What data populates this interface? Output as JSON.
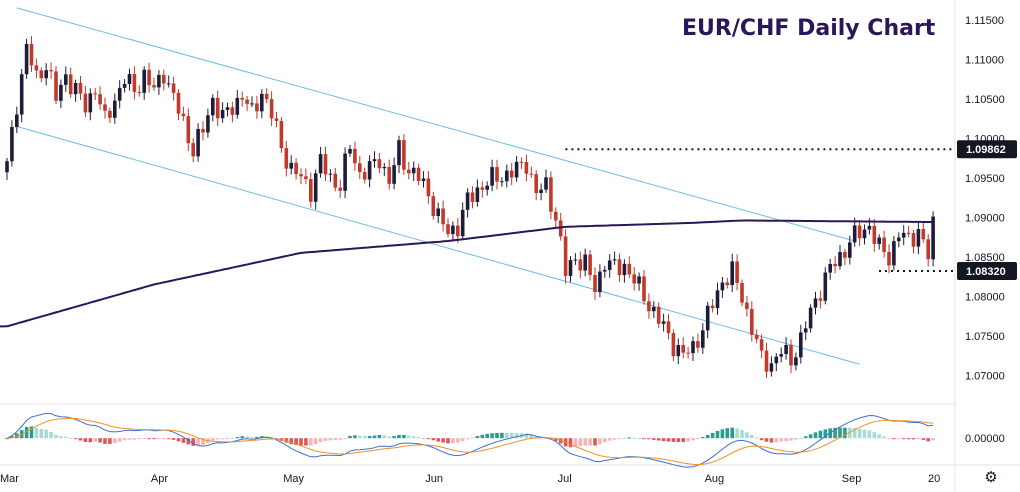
{
  "title": "EUR/CHF Daily Chart",
  "colors": {
    "up": "#1e1c3a",
    "down": "#c0392b",
    "ma": "#2a1659",
    "channel": "#6cbde8",
    "macd_line": "#3f6fd1",
    "signal_line": "#f0912b",
    "hist_pos": "#2a9d8f",
    "hist_pos_light": "#a7dcd5",
    "hist_neg": "#e05555",
    "hist_neg_light": "#f5b5b5",
    "tag_bg": "#131722"
  },
  "price_ticks": [
    "1.11500",
    "1.11000",
    "1.10500",
    "1.10000",
    "1.09500",
    "1.09000",
    "1.08500",
    "1.08000",
    "1.07500",
    "1.07000"
  ],
  "macd_tick": "0.00000",
  "month_labels": [
    "Mar",
    "Apr",
    "May",
    "Jun",
    "Jul",
    "Aug",
    "Sep",
    "20"
  ],
  "level_tags": [
    {
      "label": "1.09862",
      "value": 1.09862
    },
    {
      "label": "1.08320",
      "value": 1.0832
    }
  ],
  "settings_icon": "gear-icon",
  "chart_data": {
    "type": "candlestick",
    "title": "EUR/CHF Daily Chart",
    "x_axis_labels": [
      "Mar",
      "Apr",
      "May",
      "Jun",
      "Jul",
      "Aug",
      "Sep",
      "20"
    ],
    "y_axis": {
      "range": [
        1.0665,
        1.1175
      ],
      "ticks": [
        1.115,
        1.11,
        1.105,
        1.1,
        1.095,
        1.09,
        1.085,
        1.08,
        1.075,
        1.07
      ]
    },
    "close_path": [
      [
        0,
        1.0965
      ],
      [
        2,
        1.1045
      ],
      [
        4,
        1.1115
      ],
      [
        6,
        1.1075
      ],
      [
        8,
        1.1095
      ],
      [
        10,
        1.105
      ],
      [
        12,
        1.108
      ],
      [
        14,
        1.106
      ],
      [
        16,
        1.104
      ],
      [
        18,
        1.1065
      ],
      [
        20,
        1.102
      ],
      [
        22,
        1.105
      ],
      [
        24,
        1.1075
      ],
      [
        26,
        1.106
      ],
      [
        28,
        1.108
      ],
      [
        30,
        1.106
      ],
      [
        32,
        1.1085
      ],
      [
        34,
        1.105
      ],
      [
        36,
        1.102
      ],
      [
        38,
        1.0985
      ],
      [
        40,
        1.101
      ],
      [
        42,
        1.105
      ],
      [
        44,
        1.1025
      ],
      [
        46,
        1.104
      ],
      [
        48,
        1.1055
      ],
      [
        50,
        1.103
      ],
      [
        52,
        1.106
      ],
      [
        54,
        1.103
      ],
      [
        56,
        1.099
      ],
      [
        58,
        1.096
      ],
      [
        60,
        1.095
      ],
      [
        62,
        1.0935
      ],
      [
        64,
        1.097
      ],
      [
        66,
        1.095
      ],
      [
        68,
        1.094
      ],
      [
        70,
        1.099
      ],
      [
        72,
        1.0955
      ],
      [
        74,
        1.096
      ],
      [
        76,
        1.0975
      ],
      [
        78,
        1.0945
      ],
      [
        80,
        1.0985
      ],
      [
        82,
        1.096
      ],
      [
        84,
        1.095
      ],
      [
        86,
        1.093
      ],
      [
        88,
        1.09
      ],
      [
        90,
        1.088
      ],
      [
        92,
        1.089
      ],
      [
        94,
        1.092
      ],
      [
        96,
        1.0935
      ],
      [
        98,
        1.0945
      ],
      [
        100,
        1.095
      ],
      [
        102,
        1.0955
      ],
      [
        104,
        1.096
      ],
      [
        106,
        1.097
      ],
      [
        108,
        1.093
      ],
      [
        110,
        1.094
      ],
      [
        112,
        1.09
      ],
      [
        114,
        1.083
      ],
      [
        116,
        1.085
      ],
      [
        118,
        1.084
      ],
      [
        120,
        1.081
      ],
      [
        122,
        1.0845
      ],
      [
        124,
        1.0835
      ],
      [
        126,
        1.084
      ],
      [
        128,
        1.082
      ],
      [
        130,
        1.08
      ],
      [
        132,
        1.078
      ],
      [
        134,
        1.076
      ],
      [
        136,
        1.074
      ],
      [
        138,
        1.0725
      ],
      [
        140,
        1.0735
      ],
      [
        142,
        1.076
      ],
      [
        144,
        1.079
      ],
      [
        146,
        1.082
      ],
      [
        148,
        1.083
      ],
      [
        150,
        1.08
      ],
      [
        152,
        1.076
      ],
      [
        154,
        1.072
      ],
      [
        156,
        1.0715
      ],
      [
        158,
        1.073
      ],
      [
        160,
        1.072
      ],
      [
        162,
        1.0745
      ],
      [
        164,
        1.078
      ],
      [
        166,
        1.081
      ],
      [
        168,
        1.0835
      ],
      [
        170,
        1.085
      ],
      [
        172,
        1.087
      ],
      [
        174,
        1.088
      ],
      [
        176,
        1.089
      ],
      [
        178,
        1.086
      ],
      [
        180,
        1.085
      ],
      [
        182,
        1.088
      ],
      [
        184,
        1.087
      ],
      [
        186,
        1.0885
      ],
      [
        188,
        1.085
      ],
      [
        189,
        1.089
      ]
    ],
    "moving_average": [
      [
        0,
        1.0762
      ],
      [
        30,
        1.0815
      ],
      [
        60,
        1.0855
      ],
      [
        90,
        1.087
      ],
      [
        114,
        1.0888
      ],
      [
        140,
        1.0893
      ],
      [
        150,
        1.0896
      ],
      [
        189,
        1.0894
      ]
    ],
    "channel_upper": [
      [
        2,
        1.1165
      ],
      [
        115,
        1.098
      ],
      [
        173,
        1.087
      ]
    ],
    "channel_lower": [
      [
        2,
        1.1015
      ],
      [
        126,
        1.081
      ],
      [
        174,
        1.0714
      ]
    ],
    "macd": {
      "zero": 0.0,
      "range": [
        -0.0035,
        0.0045
      ]
    },
    "levels": [
      1.09862,
      1.0832
    ]
  }
}
